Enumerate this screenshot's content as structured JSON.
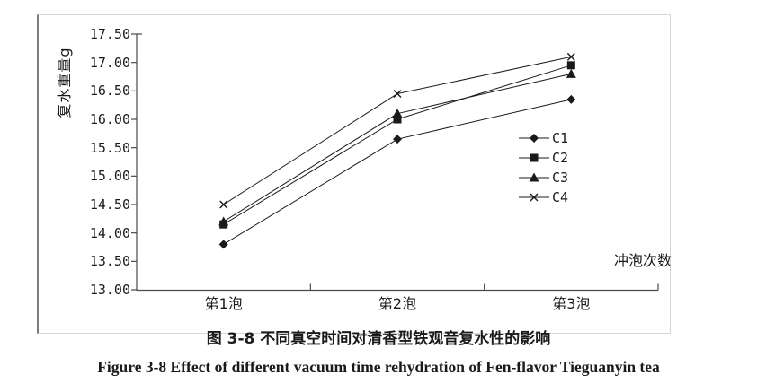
{
  "chart_data": {
    "type": "line",
    "title": "",
    "xlabel": "冲泡次数",
    "ylabel": "复水重量g",
    "categories": [
      "第1泡",
      "第2泡",
      "第3泡"
    ],
    "series": [
      {
        "name": "C1",
        "marker": "diamond",
        "values": [
          13.8,
          15.65,
          16.35
        ]
      },
      {
        "name": "C2",
        "marker": "square",
        "values": [
          14.15,
          16.0,
          16.95
        ]
      },
      {
        "name": "C3",
        "marker": "triangle",
        "values": [
          14.2,
          16.1,
          16.8
        ]
      },
      {
        "name": "C4",
        "marker": "x-cross",
        "values": [
          14.5,
          16.45,
          17.1
        ]
      }
    ],
    "ylim": [
      13.0,
      17.5
    ],
    "ytick_step": 0.5,
    "ytick_labels": [
      "17.50",
      "17.00",
      "16.50",
      "16.00",
      "15.50",
      "15.00",
      "14.50",
      "14.00",
      "13.50",
      "13.00"
    ],
    "grid": false,
    "legend_position": "right-middle",
    "line_color": "#1a1a1a",
    "axis_color": "#4a4a4a"
  },
  "captions": {
    "chinese": "图 3-8 不同真空时间对清香型铁观音复水性的影响",
    "english": "Figure 3-8 Effect of different vacuum time rehydration of Fen-flavor Tieguanyin tea"
  }
}
